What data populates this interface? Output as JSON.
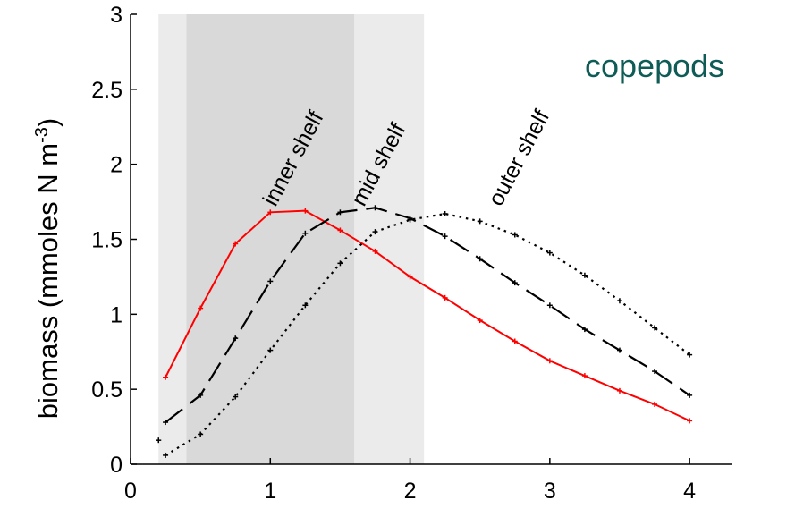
{
  "chart_data": {
    "type": "line",
    "title": "",
    "panel_label": "copepods",
    "panel_label_color": "#0f5c57",
    "ylabel_main": "biomass (mmoles N m",
    "ylabel_exponent": "-3",
    "ylabel_close": ")",
    "xlabel": "",
    "xlim": [
      0,
      4.3
    ],
    "ylim": [
      0,
      3
    ],
    "xticks": [
      0,
      1,
      2,
      3,
      4
    ],
    "yticks": [
      0,
      0.5,
      1,
      1.5,
      2,
      2.5,
      3
    ],
    "xtick_labels": [
      "0",
      "1",
      "2",
      "3",
      "4"
    ],
    "ytick_labels": [
      "0",
      "0.5",
      "1",
      "1.5",
      "2",
      "2.5",
      "3"
    ],
    "grid": false,
    "shaded_regions": [
      {
        "x": [
          0.2,
          2.1
        ],
        "color": "#ebebeb"
      },
      {
        "x": [
          0.4,
          1.6
        ],
        "color": "#d9d9d9"
      }
    ],
    "series": [
      {
        "name": "inner shelf",
        "color": "#ff0000",
        "style": "solid",
        "x": [
          0.25,
          0.5,
          0.75,
          1.0,
          1.25,
          1.5,
          1.75,
          2.0,
          2.25,
          2.5,
          2.75,
          3.0,
          3.25,
          3.5,
          3.75,
          4.0
        ],
        "y": [
          0.58,
          1.04,
          1.47,
          1.68,
          1.69,
          1.56,
          1.42,
          1.25,
          1.11,
          0.96,
          0.82,
          0.69,
          0.59,
          0.49,
          0.4,
          0.29
        ]
      },
      {
        "name": "mid shelf",
        "color": "#000000",
        "style": "dashed",
        "x": [
          0.25,
          0.5,
          0.75,
          1.0,
          1.25,
          1.5,
          1.75,
          2.0,
          2.25,
          2.5,
          2.75,
          3.0,
          3.25,
          3.5,
          3.75,
          4.0
        ],
        "y": [
          0.28,
          0.46,
          0.84,
          1.22,
          1.54,
          1.68,
          1.71,
          1.64,
          1.52,
          1.37,
          1.21,
          1.06,
          0.9,
          0.76,
          0.62,
          0.46
        ]
      },
      {
        "name": "outer shelf",
        "color": "#000000",
        "style": "dotted",
        "x": [
          0.25,
          0.5,
          0.75,
          1.0,
          1.25,
          1.5,
          1.75,
          2.0,
          2.25,
          2.5,
          2.75,
          3.0,
          3.25,
          3.5,
          3.75,
          4.0
        ],
        "y": [
          0.06,
          0.2,
          0.45,
          0.76,
          1.06,
          1.34,
          1.55,
          1.63,
          1.67,
          1.62,
          1.53,
          1.41,
          1.26,
          1.09,
          0.91,
          0.73
        ]
      }
    ],
    "extra_points": [
      {
        "x": 0.2,
        "y": 0.16
      }
    ]
  }
}
